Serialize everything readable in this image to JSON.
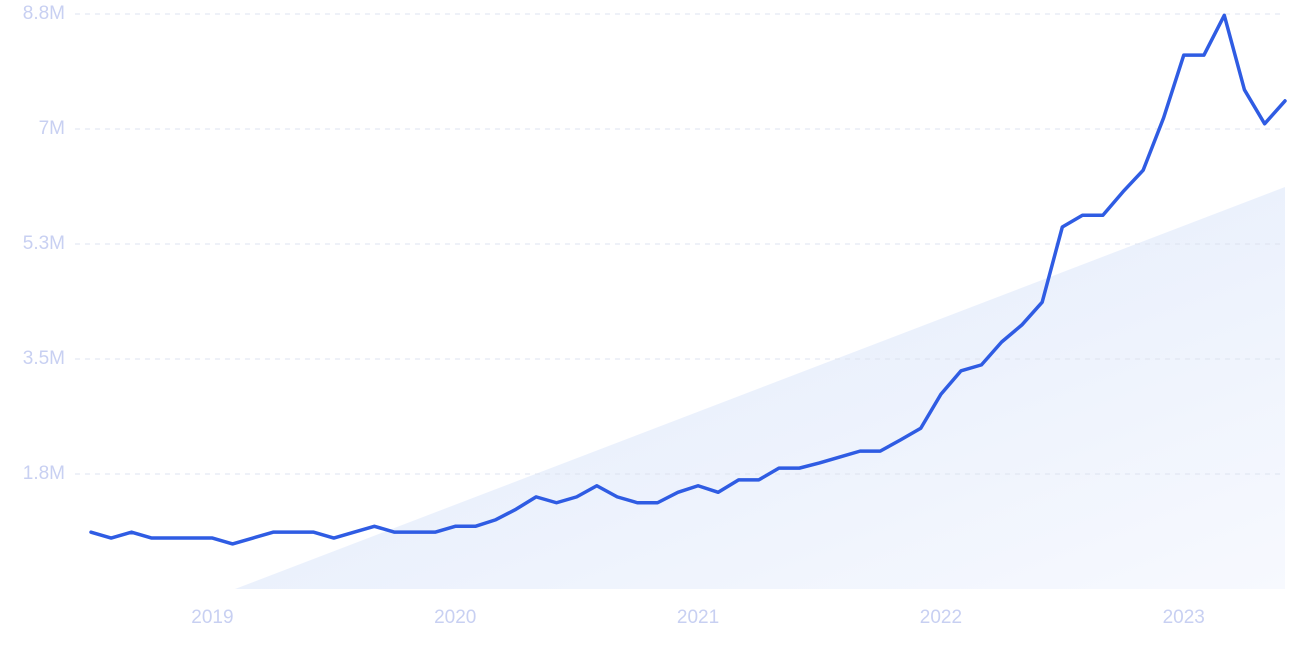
{
  "chart_data": {
    "type": "line",
    "x": [
      2018.5,
      2018.583,
      2018.667,
      2018.75,
      2018.833,
      2018.917,
      2019.0,
      2019.083,
      2019.167,
      2019.25,
      2019.333,
      2019.417,
      2019.5,
      2019.583,
      2019.667,
      2019.75,
      2019.833,
      2019.917,
      2020.0,
      2020.083,
      2020.167,
      2020.25,
      2020.333,
      2020.417,
      2020.5,
      2020.583,
      2020.667,
      2020.75,
      2020.833,
      2020.917,
      2021.0,
      2021.083,
      2021.167,
      2021.25,
      2021.333,
      2021.417,
      2021.5,
      2021.583,
      2021.667,
      2021.75,
      2021.833,
      2021.917,
      2022.0,
      2022.083,
      2022.167,
      2022.25,
      2022.333,
      2022.417,
      2022.5,
      2022.583,
      2022.667,
      2022.75,
      2022.833,
      2022.917,
      2023.0,
      2023.083,
      2023.167,
      2023.25,
      2023.333,
      2023.417
    ],
    "series": [
      {
        "color": "#2f5ce3",
        "values": [
          870000,
          780000,
          870000,
          780000,
          780000,
          780000,
          780000,
          690000,
          780000,
          870000,
          870000,
          870000,
          780000,
          870000,
          960000,
          870000,
          870000,
          870000,
          960000,
          960000,
          1060000,
          1220000,
          1410000,
          1320000,
          1410000,
          1580000,
          1410000,
          1320000,
          1320000,
          1480000,
          1580000,
          1480000,
          1670000,
          1670000,
          1850000,
          1850000,
          1930000,
          2020000,
          2110000,
          2110000,
          2280000,
          2460000,
          2980000,
          3340000,
          3430000,
          3780000,
          4040000,
          4390000,
          5540000,
          5720000,
          5720000,
          6080000,
          6410000,
          7210000,
          8170000,
          8170000,
          8780000,
          7640000,
          7120000,
          7470000
        ]
      }
    ],
    "xlim": [
      2018.5,
      2023.417
    ],
    "xticks": [
      2019,
      2020,
      2021,
      2022,
      2023
    ],
    "ylim": [
      0,
      8800000
    ],
    "yticks": [
      {
        "value": 1760000,
        "label": "1.8M"
      },
      {
        "value": 3520000,
        "label": "3.5M"
      },
      {
        "value": 5280000,
        "label": "5.3M"
      },
      {
        "value": 7040000,
        "label": "7M"
      },
      {
        "value": 8800000,
        "label": "8.8M"
      }
    ],
    "grid": true
  }
}
